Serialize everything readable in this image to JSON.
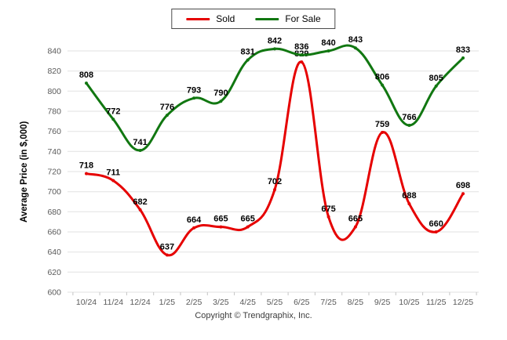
{
  "chart_data": {
    "type": "line",
    "categories": [
      "10/24",
      "11/24",
      "12/24",
      "1/25",
      "2/25",
      "3/25",
      "4/25",
      "5/25",
      "6/25",
      "7/25",
      "8/25",
      "9/25",
      "10/25",
      "11/25",
      "12/25"
    ],
    "series": [
      {
        "name": "Sold",
        "color": "#e60000",
        "values": [
          718,
          711,
          682,
          637,
          664,
          665,
          665,
          702,
          829,
          675,
          665,
          759,
          688,
          660,
          698
        ]
      },
      {
        "name": "For Sale",
        "color": "#117711",
        "values": [
          808,
          772,
          741,
          776,
          793,
          790,
          831,
          842,
          836,
          840,
          843,
          806,
          766,
          805,
          833
        ]
      }
    ],
    "title": "",
    "xlabel": "",
    "ylabel": "Average Price (in $,000)",
    "ylim": [
      600,
      840
    ],
    "ytick_step": 20,
    "grid": "horizontal",
    "legend_position": "top-center",
    "data_labels": true
  },
  "footer": {
    "copyright": "Copyright © Trendgraphix, Inc."
  }
}
